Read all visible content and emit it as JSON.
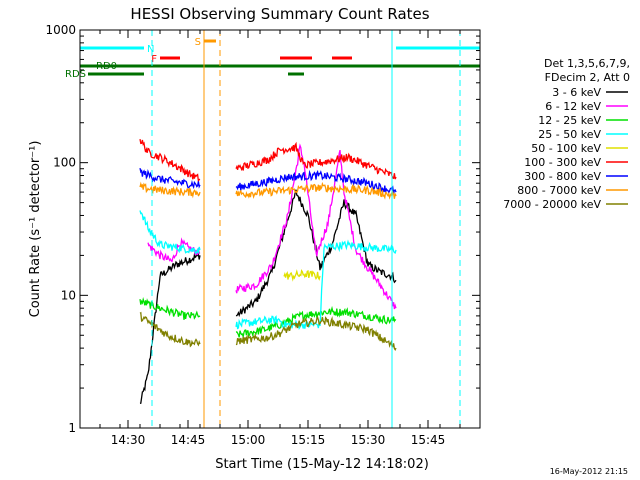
{
  "chart_data": {
    "type": "line",
    "title": "HESSI Observing Summary Count Rates",
    "xlabel": "Start Time (15-May-12 14:18:02)",
    "ylabel": "Count Rate (s⁻¹ detector⁻¹)",
    "y_scale": "log",
    "ylim": [
      1,
      1000
    ],
    "xlim": [
      "14:18",
      "15:58"
    ],
    "x_ticks": [
      "14:30",
      "14:45",
      "15:00",
      "15:15",
      "15:30",
      "15:45"
    ],
    "y_ticks": [
      "1",
      "10",
      "100",
      "1000"
    ],
    "grid": false,
    "legend_placement": "right",
    "legend_header": [
      "Det 1,3,5,6,7,9,",
      "FDecim 2, Att 0"
    ],
    "footer_stamp": "16-May-2012 21:15",
    "data_gaps": [
      [
        "14:48",
        "14:57"
      ],
      [
        "15:37",
        "15:58"
      ]
    ],
    "series": [
      {
        "name": "3 - 6 keV",
        "color": "#000000",
        "x": [
          "14:33",
          "14:35",
          "14:38",
          "14:42",
          "14:46",
          "14:48",
          "14:57",
          "15:02",
          "15:06",
          "15:09",
          "15:12",
          "15:15",
          "15:18",
          "15:21",
          "15:24",
          "15:27",
          "15:30",
          "15:33",
          "15:36",
          "15:37"
        ],
        "y": [
          1.5,
          2.5,
          14,
          17,
          19,
          20,
          7,
          9,
          15,
          30,
          60,
          40,
          16,
          24,
          50,
          40,
          17,
          15,
          14,
          13
        ]
      },
      {
        "name": "6 - 12 keV",
        "color": "#ff00ff",
        "x": [
          "14:35",
          "14:38",
          "14:41",
          "14:43",
          "14:46",
          "14:48",
          "14:57",
          "15:02",
          "15:06",
          "15:10",
          "15:13",
          "15:14",
          "15:17",
          "15:20",
          "15:23",
          "15:24",
          "15:27",
          "15:30",
          "15:33",
          "15:37"
        ],
        "y": [
          24,
          20,
          18,
          25,
          22,
          21,
          11,
          12,
          17,
          40,
          130,
          100,
          20,
          35,
          120,
          60,
          22,
          16,
          12,
          8
        ]
      },
      {
        "name": "12 - 25 keV",
        "color": "#00e000",
        "x": [
          "14:33",
          "14:38",
          "14:44",
          "14:48",
          "14:57",
          "15:04",
          "15:08",
          "15:13",
          "15:19",
          "15:24",
          "15:30",
          "15:35",
          "15:37"
        ],
        "y": [
          9,
          8,
          7,
          7,
          5,
          5.5,
          6,
          7,
          7.5,
          7.5,
          7,
          6.5,
          6.5
        ]
      },
      {
        "name": "25 - 50 keV",
        "color": "#00ffff",
        "x": [
          "14:33",
          "14:35",
          "14:38",
          "14:42",
          "14:46",
          "14:48",
          "14:57",
          "15:05",
          "15:06",
          "15:08",
          "15:09",
          "15:18",
          "15:19",
          "15:25",
          "15:30",
          "15:36",
          "15:37"
        ],
        "y": [
          45,
          32,
          24,
          23,
          22,
          22,
          6,
          6.5,
          6.5,
          6.5,
          6,
          6,
          23,
          24,
          23,
          22,
          22
        ]
      },
      {
        "name": "50 - 100 keV",
        "color": "#e0e000",
        "x": [
          "15:09",
          "15:11",
          "15:14",
          "15:18"
        ],
        "y": [
          14,
          14,
          14.5,
          14
        ]
      },
      {
        "name": "100 - 300 keV",
        "color": "#ff0000",
        "x": [
          "14:33",
          "14:35",
          "14:38",
          "14:42",
          "14:46",
          "14:48",
          "14:57",
          "15:05",
          "15:08",
          "15:12",
          "15:14",
          "15:18",
          "15:25",
          "15:30",
          "15:36",
          "15:37"
        ],
        "y": [
          150,
          120,
          110,
          95,
          80,
          75,
          90,
          105,
          125,
          130,
          95,
          100,
          110,
          95,
          80,
          78
        ]
      },
      {
        "name": "300 - 800 keV",
        "color": "#0000ff",
        "x": [
          "14:33",
          "14:38",
          "14:44",
          "14:48",
          "14:57",
          "15:05",
          "15:10",
          "15:18",
          "15:25",
          "15:30",
          "15:37"
        ],
        "y": [
          85,
          75,
          70,
          68,
          65,
          72,
          78,
          80,
          75,
          70,
          60
        ]
      },
      {
        "name": "800 - 7000 keV",
        "color": "#ff9900",
        "x": [
          "14:33",
          "14:38",
          "14:44",
          "14:48",
          "14:57",
          "15:05",
          "15:10",
          "15:18",
          "15:25",
          "15:30",
          "15:37"
        ],
        "y": [
          65,
          62,
          60,
          60,
          58,
          60,
          62,
          65,
          63,
          62,
          56
        ]
      },
      {
        "name": "7000 - 20000 keV",
        "color": "#808000",
        "x": [
          "14:33",
          "14:36",
          "14:40",
          "14:44",
          "14:48",
          "14:57",
          "15:05",
          "15:08",
          "15:12",
          "15:18",
          "15:24",
          "15:30",
          "15:37"
        ],
        "y": [
          7,
          6,
          5,
          4.5,
          4.3,
          4.5,
          4.8,
          5.2,
          6,
          6.5,
          6,
          5.5,
          4
        ]
      }
    ],
    "flag_bars": [
      {
        "label": "N",
        "color": "#00ffff",
        "segments": [
          [
            "14:18",
            "14:34"
          ],
          [
            "15:37",
            "15:58"
          ]
        ]
      },
      {
        "label": "S",
        "color": "#ff9900",
        "segments": [
          [
            "14:49",
            "14:52"
          ]
        ]
      },
      {
        "label": "F",
        "color": "#ff0000",
        "segments": [
          [
            "14:38",
            "14:43"
          ],
          [
            "15:08",
            "15:16"
          ],
          [
            "15:21",
            "15:26"
          ]
        ]
      },
      {
        "label": "RD0",
        "color": "#007000",
        "segments": [
          [
            "14:18",
            "15:58"
          ]
        ]
      },
      {
        "label": "RDS",
        "color": "#007000",
        "segments": [
          [
            "14:20",
            "14:34"
          ],
          [
            "15:10",
            "15:14"
          ]
        ]
      }
    ],
    "vertical_markers": [
      {
        "time": "14:18",
        "color": "#00ffff",
        "style": "solid"
      },
      {
        "time": "14:36",
        "color": "#00ffff",
        "style": "dashed"
      },
      {
        "time": "14:49",
        "color": "#ff9900",
        "style": "solid"
      },
      {
        "time": "14:53",
        "color": "#ff9900",
        "style": "dashed"
      },
      {
        "time": "15:36",
        "color": "#00ffff",
        "style": "solid"
      },
      {
        "time": "15:53",
        "color": "#00ffff",
        "style": "dashed"
      }
    ]
  }
}
